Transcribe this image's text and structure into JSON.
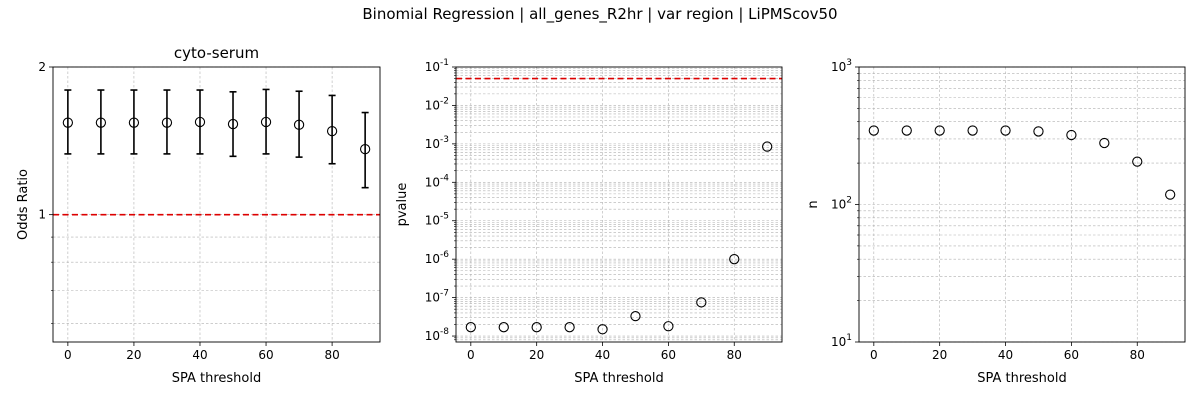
{
  "suptitle": "Binomial Regression | all_genes_R2hr | var region | LiPMScov50",
  "colors": {
    "marker": "#000000",
    "reference_line": "#dd0000",
    "grid": "#b0b0b0"
  },
  "chart_data": [
    {
      "type": "scatter",
      "title": "cyto-serum",
      "xlabel": "SPA threshold",
      "ylabel": "Odds Ratio",
      "xlim": [
        -4.5,
        94.5
      ],
      "ylim": [
        0.55,
        2
      ],
      "yscale": "log",
      "grid": true,
      "xticks": [
        0,
        20,
        40,
        60,
        80
      ],
      "yticks": [
        1,
        2
      ],
      "ytick_labels": [
        "1",
        "2"
      ],
      "reference_line": {
        "y": 1,
        "color": "#dd0000",
        "style": "dashed"
      },
      "x": [
        0,
        10,
        20,
        30,
        40,
        50,
        60,
        70,
        80,
        90
      ],
      "y": [
        1.54,
        1.54,
        1.54,
        1.54,
        1.545,
        1.53,
        1.545,
        1.525,
        1.48,
        1.36
      ],
      "y_lower": [
        1.33,
        1.33,
        1.33,
        1.33,
        1.33,
        1.315,
        1.33,
        1.31,
        1.27,
        1.135
      ],
      "y_upper": [
        1.795,
        1.795,
        1.795,
        1.795,
        1.795,
        1.78,
        1.8,
        1.785,
        1.75,
        1.615
      ]
    },
    {
      "type": "scatter",
      "title": "",
      "xlabel": "SPA threshold",
      "ylabel": "pvalue",
      "xlim": [
        -4.5,
        94.5
      ],
      "ylim": [
        7e-09,
        0.1
      ],
      "yscale": "log",
      "grid": true,
      "xticks": [
        0,
        20,
        40,
        60,
        80
      ],
      "yticks": [
        1e-08,
        1e-07,
        1e-06,
        1e-05,
        0.0001,
        0.001,
        0.01,
        0.1
      ],
      "ytick_labels": [
        "10|-8",
        "10|-7",
        "10|-6",
        "10|-5",
        "10|-4",
        "10|-3",
        "10|-2",
        "10|-1"
      ],
      "reference_line": {
        "y": 0.05,
        "color": "#dd0000",
        "style": "dashed"
      },
      "x": [
        0,
        10,
        20,
        30,
        40,
        50,
        60,
        70,
        80,
        90
      ],
      "y": [
        1.7e-08,
        1.7e-08,
        1.7e-08,
        1.7e-08,
        1.5e-08,
        3.3e-08,
        1.8e-08,
        7.5e-08,
        1e-06,
        0.00085
      ]
    },
    {
      "type": "scatter",
      "title": "",
      "xlabel": "SPA threshold",
      "ylabel": "n",
      "xlim": [
        -4.5,
        94.5
      ],
      "ylim": [
        10,
        1000
      ],
      "yscale": "log",
      "grid": true,
      "xticks": [
        0,
        20,
        40,
        60,
        80
      ],
      "yticks": [
        10,
        100,
        1000
      ],
      "ytick_labels": [
        "10|1",
        "10|2",
        "10|3"
      ],
      "x": [
        0,
        10,
        20,
        30,
        40,
        50,
        60,
        70,
        80,
        90
      ],
      "y": [
        345,
        345,
        345,
        345,
        345,
        340,
        320,
        280,
        205,
        118
      ]
    }
  ]
}
